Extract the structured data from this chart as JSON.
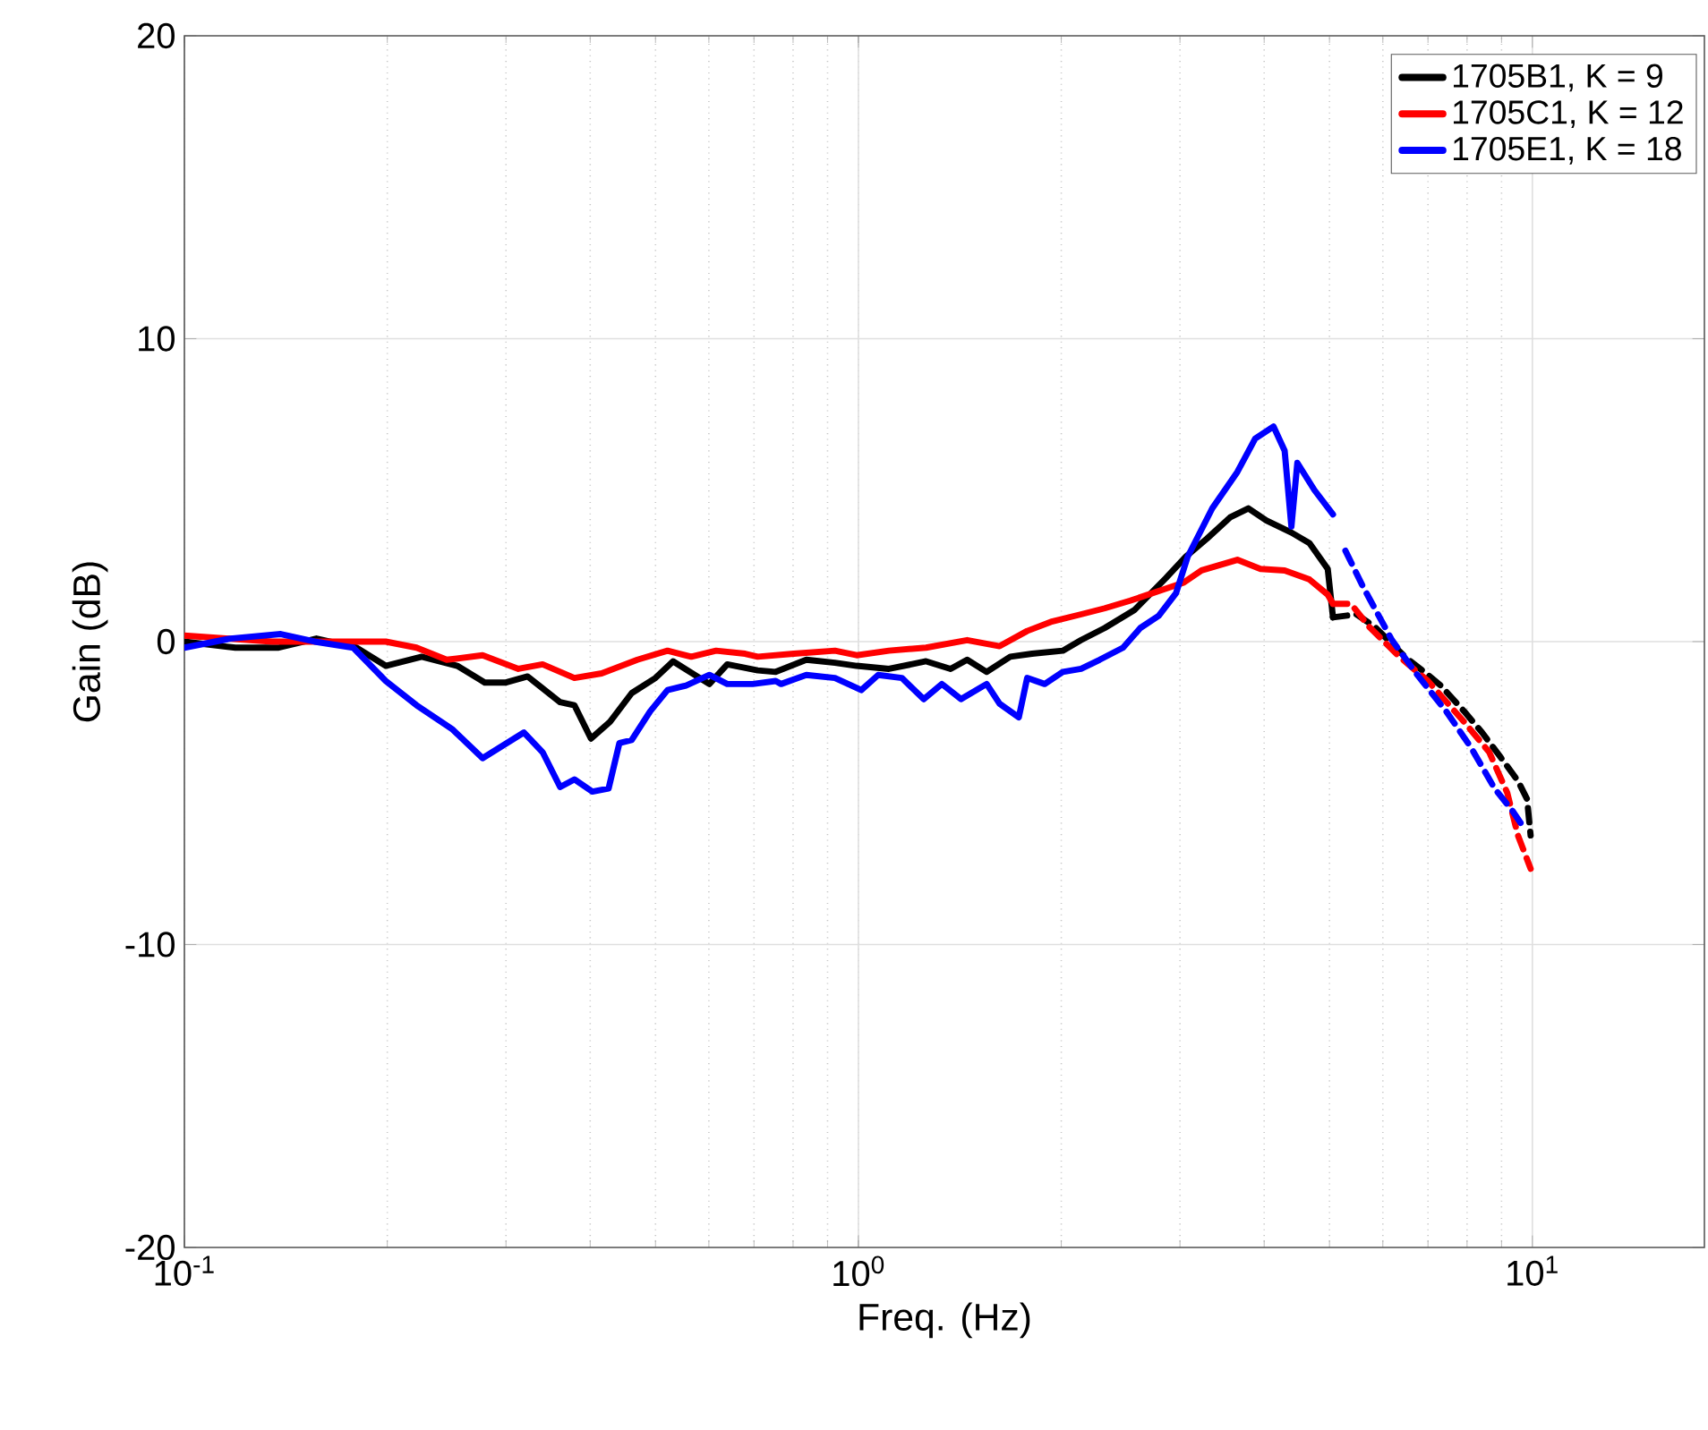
{
  "chart_data": {
    "type": "line",
    "xlabel": "Freq. (Hz)",
    "ylabel": "Gain (dB)",
    "log": "x",
    "grid": true,
    "legend": "top right",
    "line_style": "solid",
    "marker": "none",
    "xlim": [
      0.1,
      18
    ],
    "xticks": [
      {
        "value": 0.1,
        "label": "10$^{-1}$"
      },
      {
        "value": 1,
        "label": "10$^{0}$"
      },
      {
        "value": 10,
        "label": "10$^{1}$"
      }
    ],
    "ylim": [
      -20,
      20
    ],
    "yticks": [
      -20,
      -10,
      0,
      10,
      20
    ],
    "series": [
      {
        "name": "1705B1, K = 9",
        "color": "#000000",
        "x": [
          0.1,
          0.119,
          0.138,
          0.157,
          0.18,
          0.199,
          0.225,
          0.254,
          0.279,
          0.3,
          0.323,
          0.361,
          0.379,
          0.401,
          0.428,
          0.461,
          0.5,
          0.531,
          0.601,
          0.639,
          0.709,
          0.754,
          0.837,
          0.923,
          0.994,
          1.11,
          1.26,
          1.37,
          1.45,
          1.55,
          1.68,
          1.81,
          2.01,
          2.14,
          2.32,
          2.57,
          2.86,
          3.06,
          3.29,
          3.56,
          3.79,
          4.03,
          4.39,
          4.67,
          4.97,
          5.06
        ],
        "values": [
          0.0,
          -0.2,
          -0.2,
          0.1,
          -0.2,
          -0.8,
          -0.5,
          -0.8,
          -1.35,
          -1.35,
          -1.15,
          -2.0,
          -2.1,
          -3.2,
          -2.65,
          -1.7,
          -1.2,
          -0.65,
          -1.4,
          -0.75,
          -0.95,
          -1.0,
          -0.6,
          -0.7,
          -0.8,
          -0.9,
          -0.65,
          -0.9,
          -0.6,
          -1.0,
          -0.5,
          -0.4,
          -0.3,
          0.05,
          0.45,
          1.05,
          2.1,
          2.8,
          3.4,
          4.1,
          4.4,
          4.0,
          3.6,
          3.25,
          2.4,
          0.8
        ]
      },
      {
        "name": "1705C1, K = 12",
        "color": "#ff0000",
        "x": [
          0.1,
          0.135,
          0.166,
          0.199,
          0.221,
          0.245,
          0.277,
          0.313,
          0.34,
          0.379,
          0.416,
          0.47,
          0.521,
          0.565,
          0.615,
          0.679,
          0.709,
          0.802,
          0.923,
          0.994,
          1.11,
          1.26,
          1.45,
          1.62,
          1.78,
          1.93,
          2.14,
          2.32,
          2.53,
          2.86,
          3.04,
          3.23,
          3.65,
          3.95,
          4.29,
          4.67,
          4.97,
          5.06
        ],
        "values": [
          0.2,
          0.0,
          0.0,
          0.0,
          -0.2,
          -0.6,
          -0.45,
          -0.9,
          -0.75,
          -1.2,
          -1.05,
          -0.6,
          -0.3,
          -0.5,
          -0.3,
          -0.4,
          -0.5,
          -0.4,
          -0.3,
          -0.45,
          -0.3,
          -0.2,
          0.05,
          -0.15,
          0.35,
          0.65,
          0.9,
          1.1,
          1.35,
          1.75,
          1.95,
          2.35,
          2.7,
          2.4,
          2.35,
          2.05,
          1.55,
          1.25
        ]
      },
      {
        "name": "1705E1, K = 18",
        "color": "#0000ff",
        "x": [
          0.1,
          0.117,
          0.139,
          0.156,
          0.178,
          0.199,
          0.221,
          0.25,
          0.277,
          0.319,
          0.34,
          0.361,
          0.379,
          0.403,
          0.426,
          0.442,
          0.461,
          0.491,
          0.521,
          0.555,
          0.601,
          0.639,
          0.697,
          0.754,
          0.768,
          0.837,
          0.923,
          1.01,
          1.07,
          1.16,
          1.25,
          1.33,
          1.42,
          1.55,
          1.62,
          1.73,
          1.78,
          1.89,
          2.01,
          2.14,
          2.28,
          2.47,
          2.62,
          2.79,
          2.96,
          3.08,
          3.35,
          3.65,
          3.88,
          4.13,
          4.29,
          4.39,
          4.48,
          4.75,
          5.06
        ],
        "values": [
          -0.2,
          0.1,
          0.25,
          0.0,
          -0.2,
          -1.3,
          -2.1,
          -2.9,
          -3.85,
          -3.0,
          -3.65,
          -4.8,
          -4.55,
          -4.95,
          -4.85,
          -3.35,
          -3.25,
          -2.3,
          -1.6,
          -1.45,
          -1.1,
          -1.4,
          -1.4,
          -1.3,
          -1.4,
          -1.1,
          -1.2,
          -1.6,
          -1.1,
          -1.2,
          -1.9,
          -1.4,
          -1.9,
          -1.4,
          -2.05,
          -2.5,
          -1.2,
          -1.4,
          -1.0,
          -0.9,
          -0.6,
          -0.2,
          0.45,
          0.85,
          1.6,
          2.8,
          4.4,
          5.6,
          6.7,
          7.1,
          6.3,
          3.8,
          5.9,
          5.0,
          4.2
        ]
      },
      {
        "color": "#000000",
        "line_style": "dashed",
        "x": [
          5.06,
          5.48,
          5.83,
          6.47,
          7.0,
          7.31,
          7.92,
          8.42,
          8.96,
          9.52,
          9.82,
          9.94
        ],
        "values": [
          0.8,
          0.9,
          0.5,
          -0.5,
          -1.1,
          -1.45,
          -2.3,
          -3.0,
          -3.8,
          -4.6,
          -5.2,
          -6.4
        ]
      },
      {
        "color": "#ff0000",
        "line_style": "dashed",
        "x": [
          5.06,
          5.38,
          5.72,
          6.35,
          7.0,
          7.92,
          8.63,
          9.18,
          9.52,
          9.94
        ],
        "values": [
          1.25,
          1.25,
          0.5,
          -0.5,
          -1.3,
          -2.65,
          -3.65,
          -5.0,
          -6.4,
          -7.5
        ]
      },
      {
        "color": "#0000ff",
        "line_style": "dashed",
        "x": [
          5.28,
          5.61,
          6.19,
          6.75,
          7.45,
          8.11,
          8.79,
          9.35,
          9.75
        ],
        "values": [
          3.0,
          1.8,
          0.05,
          -1.1,
          -2.3,
          -3.5,
          -4.85,
          -5.6,
          -6.2
        ]
      }
    ]
  }
}
